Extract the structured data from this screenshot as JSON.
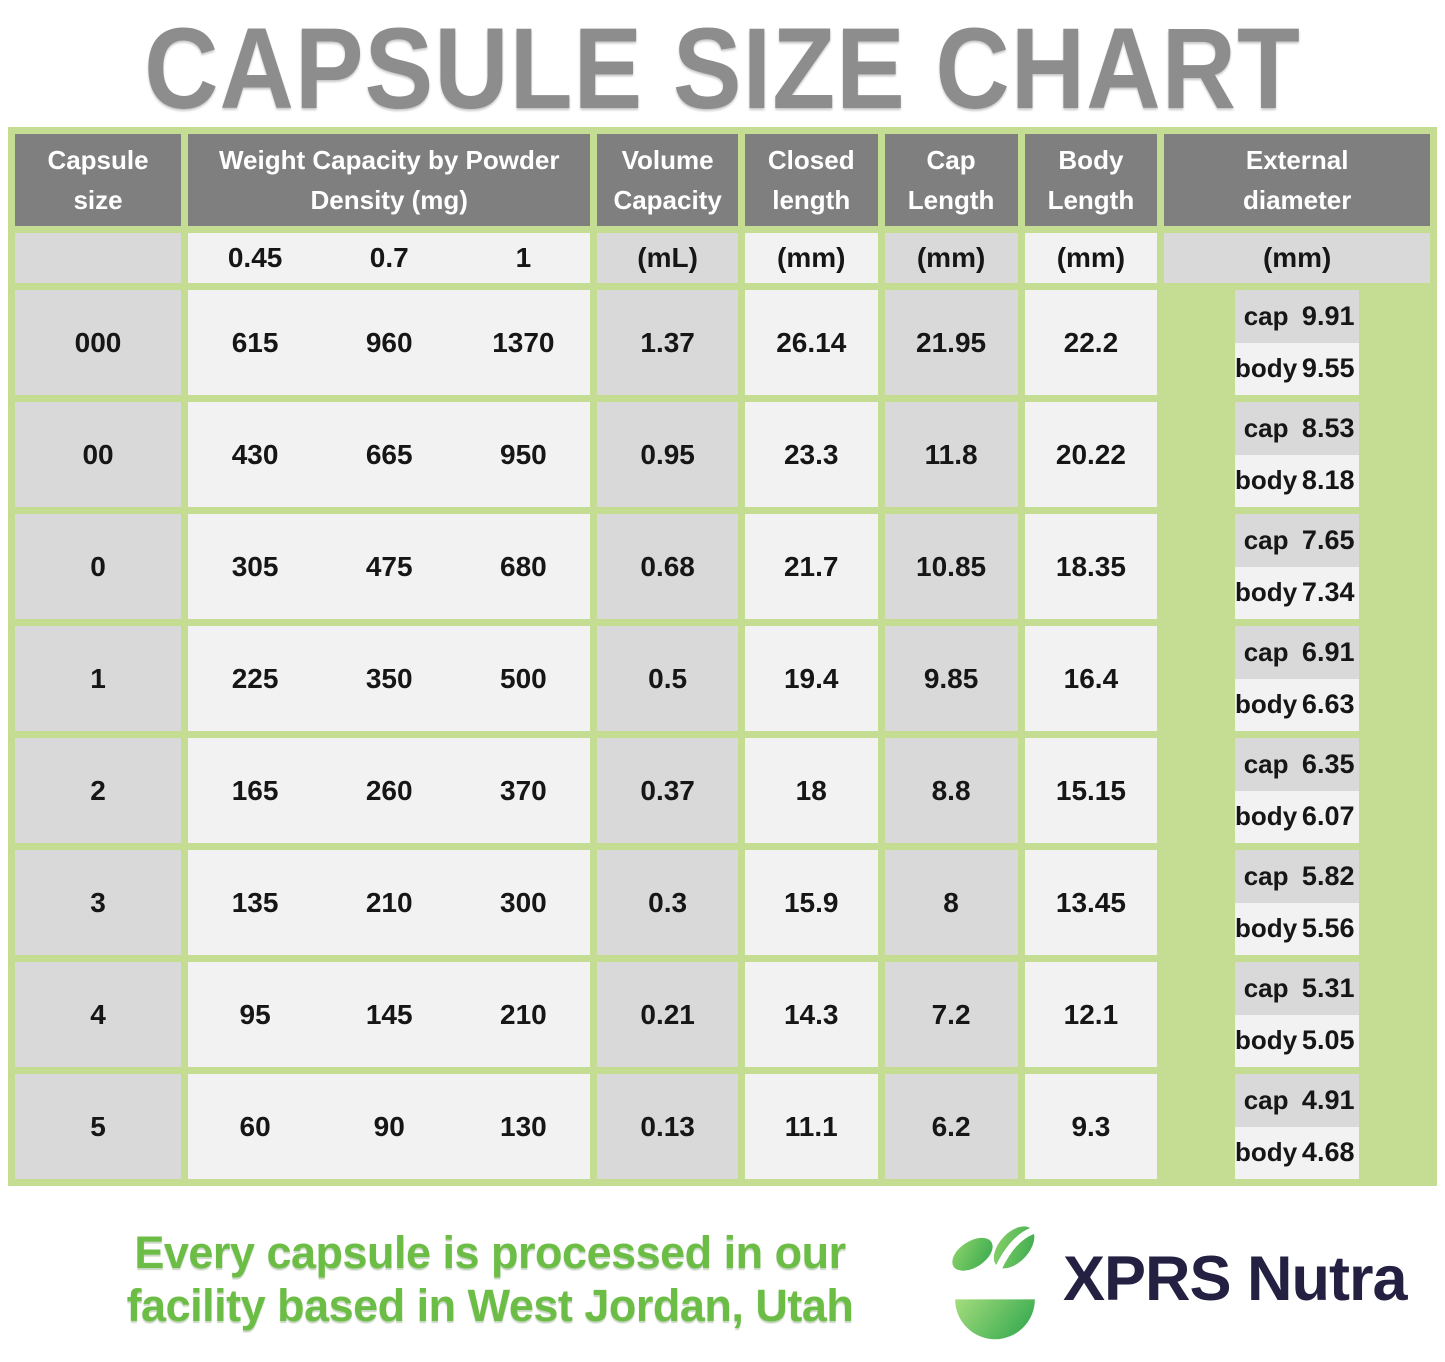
{
  "title": "CAPSULE SIZE CHART",
  "table": {
    "headers": {
      "capsule_size": "Capsule size",
      "weight": "Weight Capacity by Powder Density (mg)",
      "volume": "Volume Capacity",
      "closed": "Closed length",
      "cap": "Cap Length",
      "body": "Body Length",
      "external": "External diameter"
    },
    "units": {
      "densities": [
        "0.45",
        "0.7",
        "1"
      ],
      "volume": "(mL)",
      "closed": "(mm)",
      "cap": "(mm)",
      "body": "(mm)",
      "external": "(mm)"
    },
    "ext_labels": {
      "cap": "cap",
      "body": "body"
    },
    "rows": [
      {
        "size": "000",
        "weights": [
          "615",
          "960",
          "1370"
        ],
        "volume": "1.37",
        "closed": "26.14",
        "cap_length": "21.95",
        "body_length": "22.2",
        "ext_cap": "9.91",
        "ext_body": "9.55"
      },
      {
        "size": "00",
        "weights": [
          "430",
          "665",
          "950"
        ],
        "volume": "0.95",
        "closed": "23.3",
        "cap_length": "11.8",
        "body_length": "20.22",
        "ext_cap": "8.53",
        "ext_body": "8.18"
      },
      {
        "size": "0",
        "weights": [
          "305",
          "475",
          "680"
        ],
        "volume": "0.68",
        "closed": "21.7",
        "cap_length": "10.85",
        "body_length": "18.35",
        "ext_cap": "7.65",
        "ext_body": "7.34"
      },
      {
        "size": "1",
        "weights": [
          "225",
          "350",
          "500"
        ],
        "volume": "0.5",
        "closed": "19.4",
        "cap_length": "9.85",
        "body_length": "16.4",
        "ext_cap": "6.91",
        "ext_body": "6.63"
      },
      {
        "size": "2",
        "weights": [
          "165",
          "260",
          "370"
        ],
        "volume": "0.37",
        "closed": "18",
        "cap_length": "8.8",
        "body_length": "15.15",
        "ext_cap": "6.35",
        "ext_body": "6.07"
      },
      {
        "size": "3",
        "weights": [
          "135",
          "210",
          "300"
        ],
        "volume": "0.3",
        "closed": "15.9",
        "cap_length": "8",
        "body_length": "13.45",
        "ext_cap": "5.82",
        "ext_body": "5.56"
      },
      {
        "size": "4",
        "weights": [
          "95",
          "145",
          "210"
        ],
        "volume": "0.21",
        "closed": "14.3",
        "cap_length": "7.2",
        "body_length": "12.1",
        "ext_cap": "5.31",
        "ext_body": "5.05"
      },
      {
        "size": "5",
        "weights": [
          "60",
          "90",
          "130"
        ],
        "volume": "0.13",
        "closed": "11.1",
        "cap_length": "6.2",
        "body_length": "9.3",
        "ext_cap": "4.91",
        "ext_body": "4.68"
      }
    ]
  },
  "footer": {
    "line1": "Every capsule is processed in our",
    "line2": "facility based in West Jordan, Utah",
    "brand": "XPRS Nutra"
  },
  "colors": {
    "border_green": "#c4dd92",
    "header_gray": "#7f7f7f",
    "cell_dark": "#d9d9d9",
    "cell_light": "#f2f2f2",
    "footer_green": "#6cbd45",
    "brand_navy": "#232042",
    "title_gray": "#8d8d8d"
  },
  "chart_data": {
    "type": "table",
    "title": "CAPSULE SIZE CHART",
    "columns": [
      "Capsule size",
      "Weight Capacity at 0.45 Powder Density (mg)",
      "Weight Capacity at 0.7 Powder Density (mg)",
      "Weight Capacity at 1 Powder Density (mg)",
      "Volume Capacity (mL)",
      "Closed length (mm)",
      "Cap Length (mm)",
      "Body Length (mm)",
      "External diameter cap (mm)",
      "External diameter body (mm)"
    ],
    "rows": [
      [
        "000",
        615,
        960,
        1370,
        1.37,
        26.14,
        21.95,
        22.2,
        9.91,
        9.55
      ],
      [
        "00",
        430,
        665,
        950,
        0.95,
        23.3,
        11.8,
        20.22,
        8.53,
        8.18
      ],
      [
        "0",
        305,
        475,
        680,
        0.68,
        21.7,
        10.85,
        18.35,
        7.65,
        7.34
      ],
      [
        "1",
        225,
        350,
        500,
        0.5,
        19.4,
        9.85,
        16.4,
        6.91,
        6.63
      ],
      [
        "2",
        165,
        260,
        370,
        0.37,
        18,
        8.8,
        15.15,
        6.35,
        6.07
      ],
      [
        "3",
        135,
        210,
        300,
        0.3,
        15.9,
        8,
        13.45,
        5.82,
        5.56
      ],
      [
        "4",
        95,
        145,
        210,
        0.21,
        14.3,
        7.2,
        12.1,
        5.31,
        5.05
      ],
      [
        "5",
        60,
        90,
        130,
        0.13,
        11.1,
        6.2,
        9.3,
        4.91,
        4.68
      ]
    ]
  }
}
